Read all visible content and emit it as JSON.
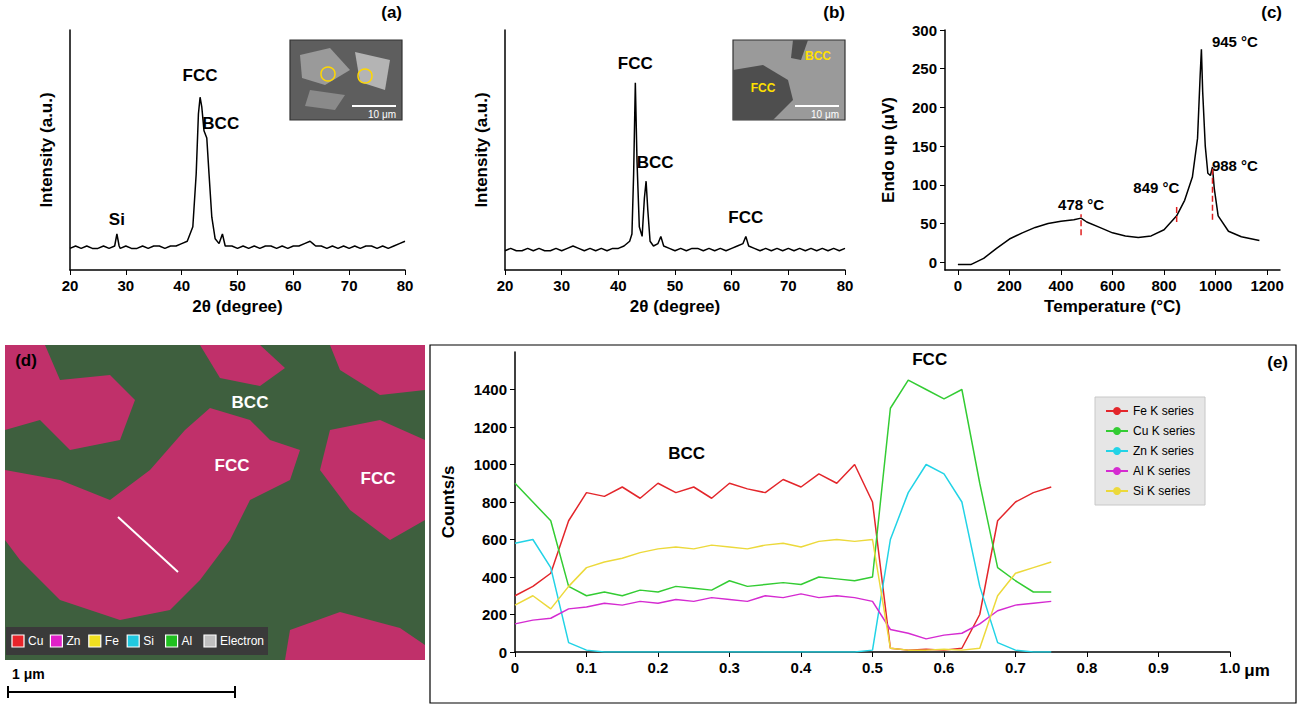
{
  "chart_data": [
    {
      "panel_label": "(a)",
      "type": "line",
      "xlabel": "2θ (degree)",
      "ylabel": "Intensity (a.u.)",
      "x": [
        20,
        21,
        22,
        23,
        24,
        25,
        26,
        27,
        28,
        28.4,
        28.8,
        29,
        30,
        31,
        32,
        33,
        34,
        35,
        36,
        37,
        38,
        39,
        40,
        41,
        42,
        42.6,
        43,
        43.3,
        43.6,
        44,
        44.5,
        44.9,
        45.4,
        46,
        46.7,
        47.3,
        47.8,
        49,
        50,
        51,
        52,
        53,
        54,
        55,
        56,
        57,
        58,
        59,
        60,
        61,
        62,
        63,
        63.5,
        64,
        65,
        66,
        67,
        68,
        69,
        70,
        71,
        72,
        73,
        74,
        75,
        76,
        77,
        78,
        79,
        80
      ],
      "values": [
        9,
        10,
        9,
        10,
        9,
        9,
        10,
        9,
        10,
        15,
        10,
        9,
        10,
        9,
        9,
        10,
        9,
        10,
        10,
        9,
        10,
        10,
        11,
        12,
        18,
        40,
        65,
        72,
        68,
        58,
        55,
        40,
        22,
        13,
        11,
        15,
        10,
        10,
        9,
        10,
        9,
        10,
        9,
        10,
        10,
        9,
        10,
        9,
        10,
        10,
        11,
        12,
        11,
        10,
        10,
        9,
        10,
        9,
        10,
        9,
        10,
        9,
        10,
        10,
        9,
        10,
        9,
        10,
        11,
        12
      ],
      "color": "#000000",
      "xlim": [
        20,
        80
      ],
      "xticks": [
        20,
        30,
        40,
        50,
        60,
        70,
        80
      ],
      "ylim": [
        0,
        100
      ],
      "tick_labels": "x",
      "grid": false,
      "annotations": [
        {
          "text": "Si",
          "x": 28.4,
          "y": 21
        },
        {
          "text": "FCC",
          "x": 43.3,
          "y": 81
        },
        {
          "text": "BCC",
          "x": 47,
          "y": 61
        }
      ],
      "inset": {
        "labels": [],
        "scale_bar": "10 μm"
      }
    },
    {
      "panel_label": "(b)",
      "type": "line",
      "xlabel": "2θ (degree)",
      "ylabel": "Intensity (a.u.)",
      "x": [
        20,
        21,
        22,
        23,
        24,
        25,
        26,
        27,
        28,
        29,
        30,
        31,
        32,
        33,
        34,
        35,
        36,
        37,
        38,
        39,
        40,
        41,
        42,
        42.4,
        42.7,
        43,
        43.3,
        43.7,
        44.2,
        44.6,
        44.9,
        45.2,
        45.6,
        46.2,
        47,
        47.5,
        48,
        49,
        50,
        51,
        52,
        53,
        54,
        55,
        56,
        57,
        58,
        59,
        60,
        61,
        62,
        62.5,
        63,
        64,
        65,
        66,
        67,
        68,
        69,
        70,
        71,
        72,
        73,
        74,
        75,
        76,
        77,
        78,
        79,
        80
      ],
      "values": [
        8,
        9,
        8,
        8,
        9,
        8,
        9,
        8,
        8,
        9,
        8,
        9,
        10,
        9,
        8,
        9,
        8,
        9,
        8,
        9,
        9,
        10,
        12,
        15,
        40,
        78,
        45,
        18,
        14,
        30,
        37,
        25,
        12,
        10,
        11,
        14,
        10,
        9,
        8,
        9,
        8,
        9,
        9,
        8,
        9,
        8,
        9,
        8,
        9,
        10,
        11,
        14,
        10,
        9,
        8,
        9,
        8,
        9,
        8,
        9,
        8,
        9,
        8,
        9,
        8,
        9,
        8,
        9,
        8,
        9
      ],
      "color": "#000000",
      "xlim": [
        20,
        80
      ],
      "xticks": [
        20,
        30,
        40,
        50,
        60,
        70,
        80
      ],
      "ylim": [
        0,
        100
      ],
      "tick_labels": "x",
      "grid": false,
      "annotations": [
        {
          "text": "FCC",
          "x": 43.0,
          "y": 86
        },
        {
          "text": "BCC",
          "x": 46.5,
          "y": 45
        },
        {
          "text": "FCC",
          "x": 62.5,
          "y": 22
        }
      ],
      "inset": {
        "labels": [
          "BCC",
          "FCC"
        ],
        "scale_bar": "10 μm"
      }
    },
    {
      "panel_label": "(c)",
      "type": "line",
      "xlabel": "Temperature (°C)",
      "ylabel": "Endo up (μV)",
      "x": [
        0,
        50,
        100,
        150,
        200,
        250,
        300,
        350,
        400,
        450,
        478,
        500,
        550,
        600,
        650,
        700,
        750,
        800,
        849,
        880,
        910,
        930,
        940,
        945,
        950,
        960,
        970,
        980,
        988,
        995,
        1010,
        1050,
        1100,
        1170
      ],
      "values": [
        -3,
        -3,
        5,
        18,
        30,
        38,
        45,
        50,
        53,
        55,
        57,
        52,
        45,
        38,
        34,
        32,
        34,
        42,
        60,
        80,
        110,
        160,
        240,
        275,
        220,
        150,
        115,
        112,
        123,
        95,
        60,
        40,
        33,
        28
      ],
      "color": "#000000",
      "xlim": [
        -50,
        1250
      ],
      "xticks": [
        0,
        200,
        400,
        600,
        800,
        1000,
        1200
      ],
      "ylim": [
        -10,
        300
      ],
      "yticks": [
        0,
        50,
        100,
        150,
        200,
        250,
        300
      ],
      "grid": false,
      "annotations": [
        {
          "text": "478 °C",
          "x": 478,
          "y": 75
        },
        {
          "text": "849 °C",
          "x": 770,
          "y": 97
        },
        {
          "text": "945 °C",
          "x": 1075,
          "y": 285
        },
        {
          "text": "988 °C",
          "x": 1075,
          "y": 125
        }
      ],
      "dashed_lines": [
        {
          "x": 478,
          "y": [
            35,
            62
          ]
        },
        {
          "x": 849,
          "y": [
            52,
            75
          ]
        },
        {
          "x": 988,
          "y": [
            55,
            125
          ]
        }
      ]
    },
    {
      "panel_label": "(e)",
      "type": "line",
      "xlabel": "μm",
      "ylabel": "Counts/s",
      "x": [
        0,
        0.025,
        0.05,
        0.075,
        0.1,
        0.125,
        0.15,
        0.175,
        0.2,
        0.225,
        0.25,
        0.275,
        0.3,
        0.325,
        0.35,
        0.375,
        0.4,
        0.425,
        0.45,
        0.475,
        0.5,
        0.525,
        0.55,
        0.575,
        0.6,
        0.625,
        0.65,
        0.675,
        0.7,
        0.725,
        0.75
      ],
      "series": [
        {
          "name": "Fe K series",
          "color": "#e3262b",
          "values": [
            300,
            350,
            420,
            700,
            850,
            830,
            880,
            820,
            900,
            850,
            880,
            820,
            900,
            870,
            850,
            920,
            880,
            950,
            900,
            1000,
            800,
            20,
            10,
            15,
            10,
            20,
            200,
            700,
            800,
            850,
            880
          ]
        },
        {
          "name": "Cu K series",
          "color": "#33cc33",
          "values": [
            900,
            800,
            700,
            350,
            300,
            320,
            300,
            330,
            320,
            350,
            340,
            330,
            380,
            350,
            360,
            370,
            360,
            400,
            390,
            380,
            400,
            1300,
            1450,
            1400,
            1350,
            1400,
            900,
            450,
            380,
            320,
            320
          ]
        },
        {
          "name": "Zn K series",
          "color": "#22d3e6",
          "values": [
            580,
            600,
            450,
            50,
            10,
            0,
            0,
            0,
            0,
            0,
            0,
            0,
            0,
            0,
            0,
            0,
            0,
            0,
            0,
            0,
            10,
            600,
            850,
            1000,
            950,
            800,
            350,
            50,
            10,
            0,
            0
          ]
        },
        {
          "name": "Al K series",
          "color": "#d52bd1",
          "values": [
            150,
            170,
            180,
            230,
            240,
            260,
            250,
            270,
            260,
            280,
            270,
            290,
            280,
            270,
            300,
            290,
            310,
            290,
            300,
            290,
            270,
            120,
            100,
            70,
            90,
            100,
            150,
            220,
            250,
            260,
            270
          ]
        },
        {
          "name": "Si K series",
          "color": "#ecd93b",
          "values": [
            250,
            300,
            230,
            350,
            450,
            480,
            500,
            530,
            550,
            560,
            550,
            570,
            560,
            550,
            570,
            580,
            560,
            590,
            600,
            590,
            600,
            20,
            10,
            10,
            15,
            10,
            20,
            300,
            420,
            450,
            480
          ]
        }
      ],
      "xlim": [
        0,
        1
      ],
      "xticks": [
        0,
        0.1,
        0.2,
        0.3,
        0.4,
        0.5,
        0.6,
        0.7,
        0.8,
        0.9,
        {
          "value": 1,
          "label": "1.0"
        }
      ],
      "ylim": [
        0,
        1600
      ],
      "yticks": [
        0,
        200,
        400,
        600,
        800,
        1000,
        1200,
        1400
      ],
      "grid": false,
      "legend": "upper right",
      "annotations": [
        {
          "text": "BCC",
          "x": 0.24,
          "y": 1060
        },
        {
          "text": "FCC",
          "x": 0.58,
          "y": 1560
        }
      ]
    }
  ],
  "map": {
    "panel_label": "(d)",
    "labels": [
      "BCC",
      "FCC",
      "FCC"
    ],
    "legend": [
      {
        "label": "Cu",
        "color": "#e8242a"
      },
      {
        "label": "Zn",
        "color": "#e020c8"
      },
      {
        "label": "Fe",
        "color": "#f0e020"
      },
      {
        "label": "Si",
        "color": "#20c8e0"
      },
      {
        "label": "Al",
        "color": "#20c020"
      },
      {
        "label": "Electron",
        "color": "#c0c0c0"
      }
    ],
    "scale_bar": "1 μm"
  }
}
